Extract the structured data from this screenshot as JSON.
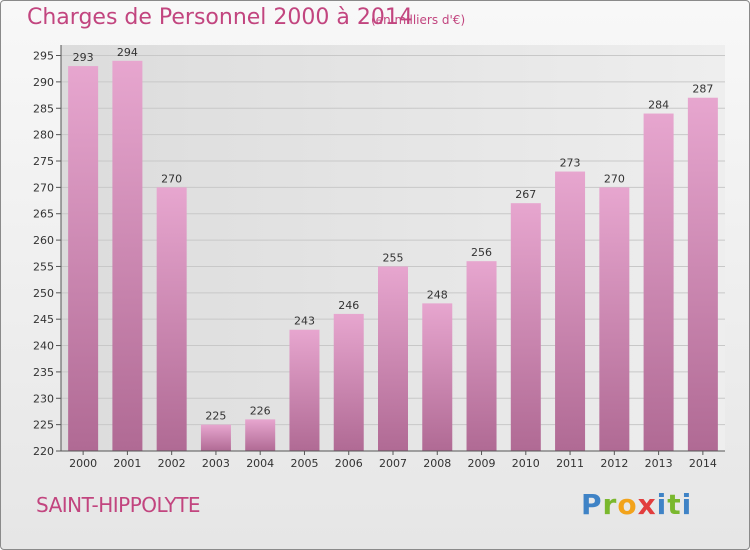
{
  "header": {
    "title": "Charges de Personnel 2000 à 2014",
    "subtitle": "(en milliers d'€)"
  },
  "footer": {
    "city": "SAINT-HIPPOLYTE",
    "logo": "Proxiti",
    "logo_colors": [
      "#3f83c6",
      "#7ab82e",
      "#f2a31b",
      "#e23d3d",
      "#3f83c6",
      "#7ab82e"
    ]
  },
  "colors": {
    "accent": "#c2457f",
    "bar_top": "#e7a6cf",
    "bar_bottom": "#b06a94",
    "grid": "#c8c8c8"
  },
  "chart_data": {
    "type": "bar",
    "categories": [
      "2000",
      "2001",
      "2002",
      "2003",
      "2004",
      "2005",
      "2006",
      "2007",
      "2008",
      "2009",
      "2010",
      "2011",
      "2012",
      "2013",
      "2014"
    ],
    "values": [
      293,
      294,
      270,
      225,
      226,
      243,
      246,
      255,
      248,
      256,
      267,
      273,
      270,
      284,
      287
    ],
    "yticks": [
      220,
      225,
      230,
      235,
      240,
      245,
      250,
      255,
      260,
      265,
      270,
      275,
      280,
      285,
      290,
      295
    ],
    "ylim": [
      220,
      297
    ],
    "grid": true,
    "data_labels": true,
    "title": "Charges de Personnel 2000 à 2014",
    "xlabel": "",
    "ylabel": ""
  }
}
